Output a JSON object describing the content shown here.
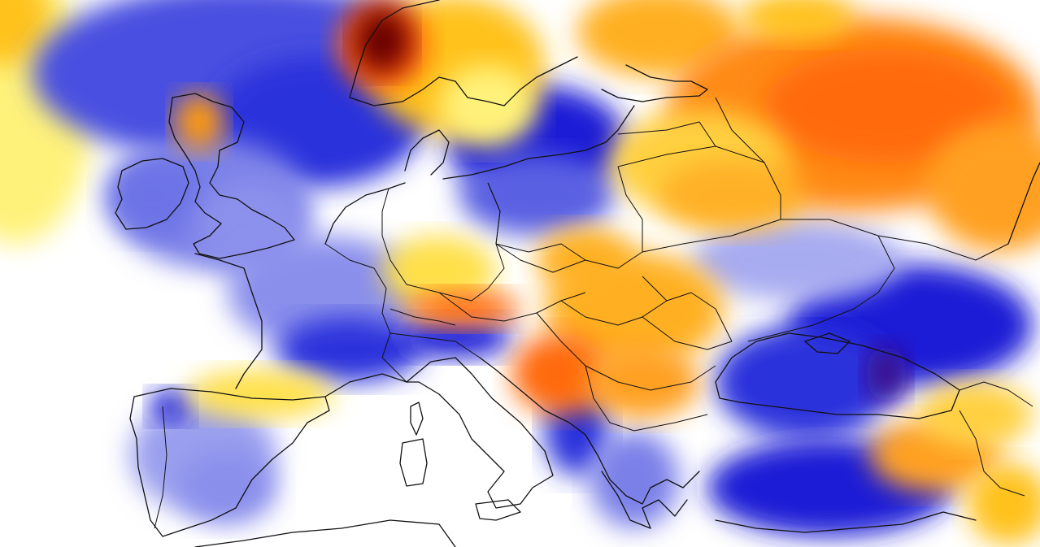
{
  "map": {
    "kind": "anomaly-heatmap",
    "region": "Europe",
    "legend": null,
    "title": "",
    "colors": {
      "background": "#ffffff",
      "cold_light": "#c9cdf5",
      "cold_mid": "#6d73e6",
      "cold_strong": "#1a1fd6",
      "cold_extreme": "#3a0a8c",
      "warm_light": "#fff27a",
      "warm_mid": "#ffc21a",
      "warm_strong": "#ff7a10",
      "warm_extreme": "#6a0000",
      "outline": "#111111"
    }
  }
}
